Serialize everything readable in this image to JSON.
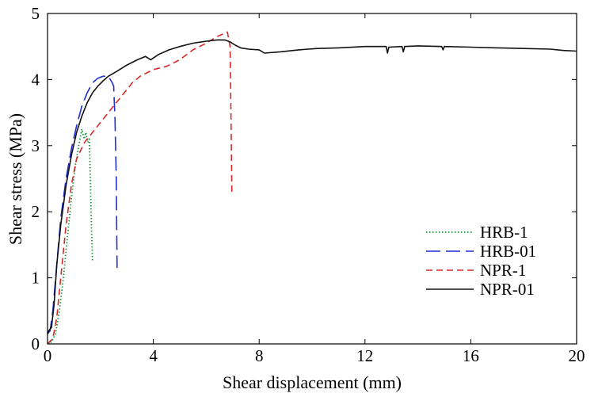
{
  "chart_data": {
    "type": "line",
    "title": "",
    "xlabel": "Shear displacement (mm)",
    "ylabel": "Shear stress (MPa)",
    "xlim": [
      0,
      20
    ],
    "ylim": [
      0,
      5
    ],
    "xticks": [
      0,
      4,
      8,
      12,
      16,
      20
    ],
    "yticks": [
      0,
      1,
      2,
      3,
      4,
      5
    ],
    "grid": false,
    "legend_position": "center-right",
    "series": [
      {
        "name": "HRB-1",
        "color": "#1a9a3c",
        "style": "dotted",
        "points": [
          [
            0,
            0
          ],
          [
            0.15,
            0.03
          ],
          [
            0.3,
            0.15
          ],
          [
            0.45,
            0.5
          ],
          [
            0.6,
            1.0
          ],
          [
            0.75,
            1.6
          ],
          [
            0.9,
            2.2
          ],
          [
            1.05,
            2.7
          ],
          [
            1.2,
            3.05
          ],
          [
            1.3,
            3.25
          ],
          [
            1.38,
            3.1
          ],
          [
            1.45,
            3.2
          ],
          [
            1.52,
            3.05
          ],
          [
            1.58,
            3.1
          ],
          [
            1.62,
            2.5
          ],
          [
            1.66,
            1.8
          ],
          [
            1.7,
            1.25
          ]
        ]
      },
      {
        "name": "HRB-01",
        "color": "#1f2fd0",
        "style": "long-dash",
        "points": [
          [
            0,
            0.15
          ],
          [
            0.1,
            0.2
          ],
          [
            0.2,
            0.5
          ],
          [
            0.35,
            1.2
          ],
          [
            0.5,
            1.9
          ],
          [
            0.7,
            2.5
          ],
          [
            0.9,
            2.95
          ],
          [
            1.1,
            3.3
          ],
          [
            1.3,
            3.6
          ],
          [
            1.5,
            3.8
          ],
          [
            1.7,
            3.95
          ],
          [
            1.9,
            4.02
          ],
          [
            2.1,
            4.05
          ],
          [
            2.3,
            4.05
          ],
          [
            2.45,
            3.95
          ],
          [
            2.5,
            3.9
          ],
          [
            2.55,
            3.4
          ],
          [
            2.6,
            2.5
          ],
          [
            2.63,
            1.15
          ]
        ]
      },
      {
        "name": "NPR-1",
        "color": "#d42a2a",
        "style": "dashed",
        "points": [
          [
            0,
            0
          ],
          [
            0.2,
            0.08
          ],
          [
            0.35,
            0.4
          ],
          [
            0.5,
            1.0
          ],
          [
            0.7,
            1.8
          ],
          [
            0.9,
            2.4
          ],
          [
            1.1,
            2.8
          ],
          [
            1.4,
            3.05
          ],
          [
            1.7,
            3.2
          ],
          [
            2.0,
            3.35
          ],
          [
            2.3,
            3.5
          ],
          [
            2.6,
            3.65
          ],
          [
            2.9,
            3.8
          ],
          [
            3.2,
            3.95
          ],
          [
            3.5,
            4.05
          ],
          [
            4.0,
            4.15
          ],
          [
            4.5,
            4.2
          ],
          [
            5.0,
            4.3
          ],
          [
            5.5,
            4.45
          ],
          [
            6.0,
            4.55
          ],
          [
            6.4,
            4.65
          ],
          [
            6.8,
            4.72
          ],
          [
            6.9,
            4.5
          ],
          [
            6.95,
            3.0
          ],
          [
            6.97,
            2.25
          ]
        ]
      },
      {
        "name": "NPR-01",
        "color": "#111111",
        "style": "solid",
        "points": [
          [
            0,
            0.15
          ],
          [
            0.05,
            0.2
          ],
          [
            0.15,
            0.25
          ],
          [
            0.25,
            0.6
          ],
          [
            0.35,
            1.2
          ],
          [
            0.5,
            1.8
          ],
          [
            0.7,
            2.4
          ],
          [
            0.9,
            2.85
          ],
          [
            1.1,
            3.2
          ],
          [
            1.3,
            3.45
          ],
          [
            1.5,
            3.65
          ],
          [
            1.7,
            3.8
          ],
          [
            1.9,
            3.9
          ],
          [
            2.1,
            3.98
          ],
          [
            2.3,
            4.05
          ],
          [
            2.6,
            4.12
          ],
          [
            3.0,
            4.22
          ],
          [
            3.4,
            4.3
          ],
          [
            3.7,
            4.35
          ],
          [
            3.9,
            4.3
          ],
          [
            4.2,
            4.38
          ],
          [
            4.6,
            4.45
          ],
          [
            5.0,
            4.5
          ],
          [
            5.5,
            4.55
          ],
          [
            6.0,
            4.58
          ],
          [
            6.4,
            4.6
          ],
          [
            6.7,
            4.6
          ],
          [
            6.9,
            4.57
          ],
          [
            7.1,
            4.52
          ],
          [
            7.3,
            4.48
          ],
          [
            7.6,
            4.46
          ],
          [
            8.0,
            4.45
          ],
          [
            8.2,
            4.4
          ],
          [
            8.8,
            4.42
          ],
          [
            9.5,
            4.45
          ],
          [
            10.2,
            4.47
          ],
          [
            11.0,
            4.48
          ],
          [
            12.0,
            4.5
          ],
          [
            12.8,
            4.5
          ],
          [
            12.85,
            4.4
          ],
          [
            12.9,
            4.49
          ],
          [
            13.4,
            4.5
          ],
          [
            13.45,
            4.42
          ],
          [
            13.5,
            4.5
          ],
          [
            14.0,
            4.51
          ],
          [
            14.9,
            4.5
          ],
          [
            14.95,
            4.45
          ],
          [
            15.0,
            4.5
          ],
          [
            16.0,
            4.49
          ],
          [
            17.0,
            4.48
          ],
          [
            18.0,
            4.47
          ],
          [
            19.0,
            4.46
          ],
          [
            19.5,
            4.44
          ],
          [
            20.0,
            4.43
          ]
        ]
      }
    ]
  }
}
